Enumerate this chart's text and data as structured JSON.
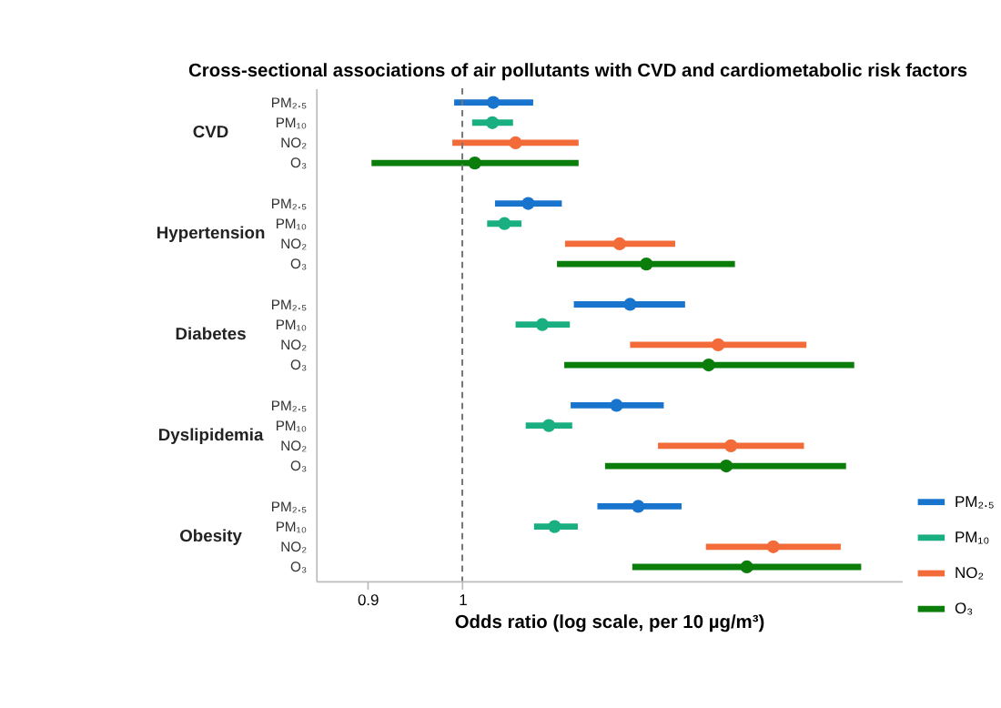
{
  "chart_data": {
    "type": "scatter",
    "orientation": "horizontal",
    "title": "Cross-sectional associations of air pollutants with CVD and cardiometabolic risk factors",
    "xlabel": "Odds ratio (log scale, per 10 µg/m³)",
    "categories": [
      "CVD",
      "Hypertension",
      "Diabetes",
      "Dyslipidemia",
      "Obesity"
    ],
    "series": [
      {
        "name": "PM₂.₅",
        "color": "#1874cd",
        "values": [
          1.035,
          1.076,
          1.205,
          1.187,
          1.216
        ],
        "errors": [
          [
            0.991,
            1.082
          ],
          [
            1.037,
            1.117
          ],
          [
            1.132,
            1.281
          ],
          [
            1.128,
            1.251
          ],
          [
            1.162,
            1.276
          ]
        ]
      },
      {
        "name": "PM₁₀",
        "color": "#1aaf80",
        "values": [
          1.034,
          1.048,
          1.093,
          1.101,
          1.108
        ],
        "errors": [
          [
            1.011,
            1.058
          ],
          [
            1.028,
            1.068
          ],
          [
            1.061,
            1.127
          ],
          [
            1.073,
            1.13
          ],
          [
            1.083,
            1.137
          ]
        ]
      },
      {
        "name": "NO₂",
        "color": "#f26b38",
        "values": [
          1.061,
          1.191,
          1.329,
          1.348,
          1.413
        ],
        "errors": [
          [
            0.989,
            1.138
          ],
          [
            1.121,
            1.267
          ],
          [
            1.205,
            1.466
          ],
          [
            1.243,
            1.462
          ],
          [
            1.311,
            1.523
          ]
        ]
      },
      {
        "name": "O₃",
        "color": "#0a7d0a",
        "values": [
          1.014,
          1.227,
          1.315,
          1.341,
          1.372
        ],
        "errors": [
          [
            0.904,
            1.138
          ],
          [
            1.111,
            1.354
          ],
          [
            1.12,
            1.546
          ],
          [
            1.172,
            1.532
          ],
          [
            1.208,
            1.558
          ]
        ]
      }
    ],
    "xlim": [
      0.85,
      1.63
    ],
    "xticks": [
      0.9,
      1
    ],
    "log": "x",
    "grid": false,
    "legend": "bottom right",
    "marker": "circle",
    "ref_lines": [
      {
        "axis": "x",
        "value": 1,
        "color": "#777777",
        "line_style": "dashed"
      }
    ]
  }
}
